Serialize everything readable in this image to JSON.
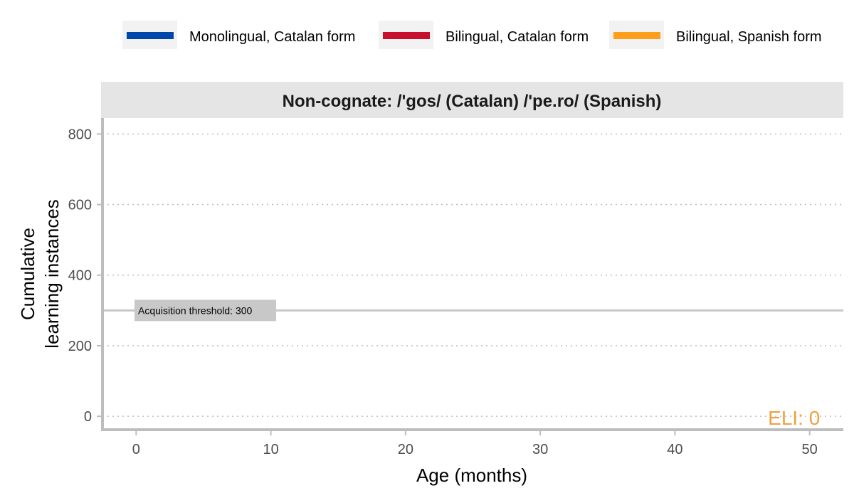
{
  "chart_data": {
    "type": "line",
    "title": "Non-cognate: /'gos/ (Catalan) /'pe.ro/ (Spanish)",
    "xlabel": "Age (months)",
    "ylabel": [
      "Cumulative",
      "learning instances"
    ],
    "xlim": [
      -2.5,
      52.5
    ],
    "ylim": [
      -38,
      845
    ],
    "xticks": [
      0,
      10,
      20,
      30,
      40,
      50
    ],
    "yticks": [
      0,
      200,
      400,
      600,
      800
    ],
    "grid": "horizontal-dotted",
    "legend_position": "top",
    "series": [
      {
        "name": "Monolingual, Catalan form",
        "color": "#0047AB",
        "values": []
      },
      {
        "name": "Bilingual, Catalan form",
        "color": "#C8102E",
        "values": []
      },
      {
        "name": "Bilingual, Spanish form",
        "color": "#FF9E1B",
        "values": []
      }
    ],
    "threshold": {
      "value": 300,
      "label": "Acquisition threshold: 300"
    },
    "annotation": {
      "text": "ELI: 0",
      "x": 49,
      "y": 0,
      "color": "#F0A040"
    }
  }
}
